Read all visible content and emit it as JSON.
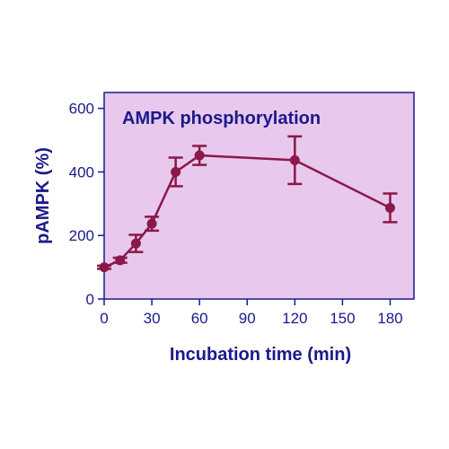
{
  "chart_data": {
    "type": "line",
    "title": "AMPK phosphorylation",
    "xlabel": "Incubation time (min)",
    "ylabel": "pAMPK (%)",
    "xlim": [
      0,
      195
    ],
    "ylim": [
      0,
      650
    ],
    "xticks": [
      0,
      30,
      60,
      90,
      120,
      150,
      180
    ],
    "yticks": [
      0,
      200,
      400,
      600
    ],
    "grid": false,
    "series": [
      {
        "x": [
          0,
          10,
          20,
          30,
          45,
          60,
          120,
          180
        ],
        "y": [
          100,
          122,
          175,
          237,
          400,
          452,
          437,
          287
        ],
        "error": [
          5,
          8,
          27,
          22,
          45,
          30,
          75,
          45
        ]
      }
    ],
    "colors": {
      "plot_background": "#e8c8ec",
      "series": "#8a1848",
      "text": "#1a1a8a",
      "axis": "#1a1a8a"
    }
  }
}
